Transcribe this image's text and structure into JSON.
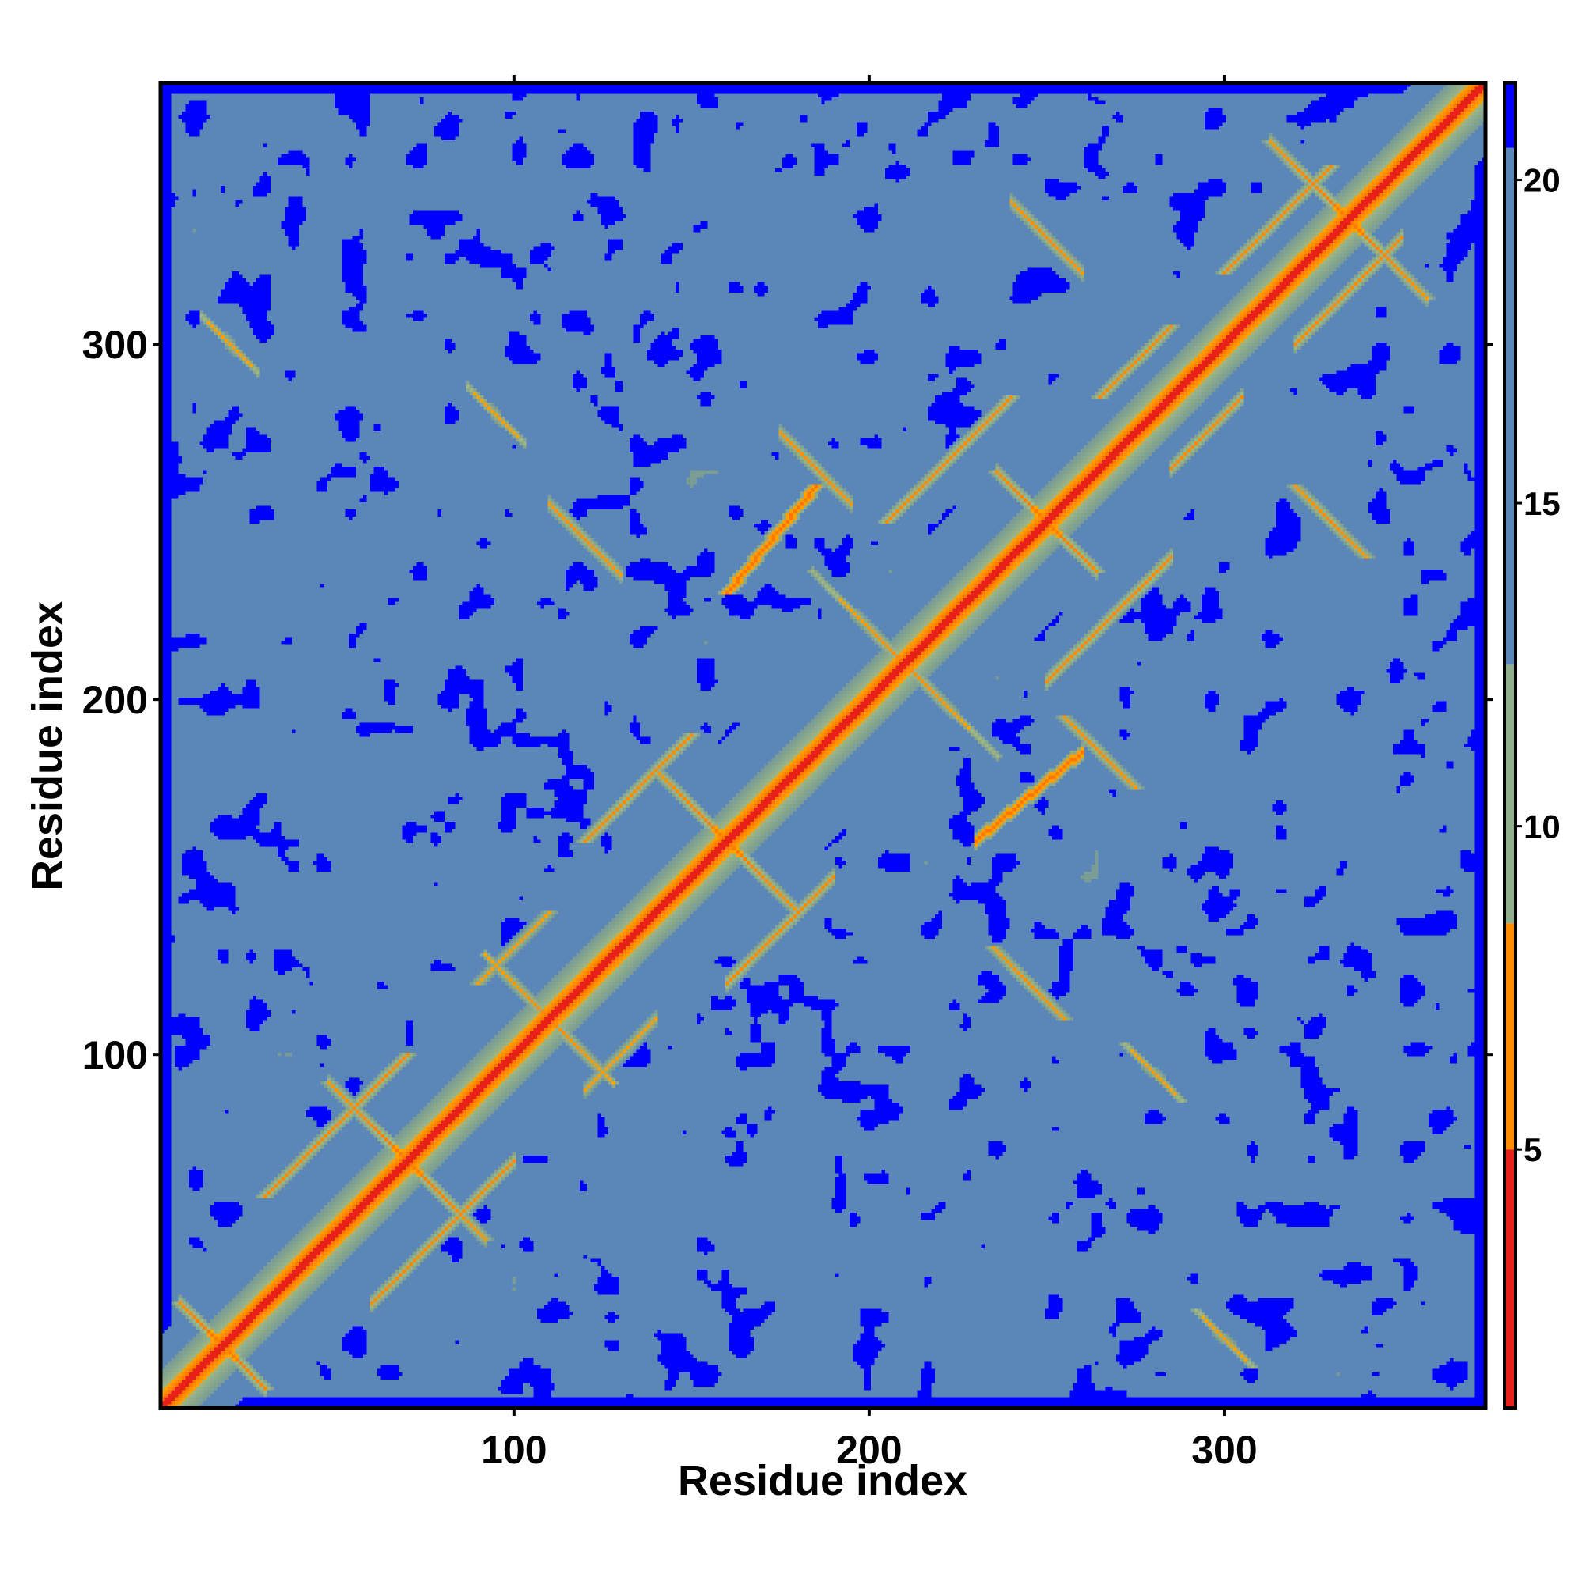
{
  "chart_data": {
    "type": "heatmap",
    "title": "",
    "xlabel": "Residue index",
    "ylabel": "Residue index",
    "xlim": [
      1,
      373
    ],
    "ylim": [
      1,
      373
    ],
    "x_ticks": [
      100,
      200,
      300
    ],
    "y_ticks": [
      100,
      200,
      300
    ],
    "colorbar": {
      "range": [
        1,
        21.5
      ],
      "ticks": [
        5,
        10,
        15,
        20
      ],
      "colors": [
        {
          "from": 1,
          "to": 5,
          "hex": "#e8201a"
        },
        {
          "from": 5,
          "to": 8.5,
          "hex": "#ff8c00"
        },
        {
          "from": 8.5,
          "to": 12.5,
          "hex": "#8fae8c"
        },
        {
          "from": 12.5,
          "to": 20.5,
          "hex": "#5b86b8"
        },
        {
          "from": 20.5,
          "to": 21.5,
          "hex": "#0000ff"
        }
      ]
    },
    "grid": false,
    "matrix": "symmetric residue-residue distance map; diagonal = 1; values rise with sequence separation; off-diagonal contact features listed below",
    "contact_features": [
      {
        "kind": "antidiagonal",
        "center": [
          70,
          70
        ],
        "half_length": 22,
        "min_value": 6
      },
      {
        "kind": "antidiagonal",
        "center": [
          160,
          160
        ],
        "half_length": 20,
        "min_value": 6
      },
      {
        "kind": "antidiagonal",
        "center": [
          250,
          250
        ],
        "half_length": 14,
        "min_value": 6
      },
      {
        "kind": "antidiagonal",
        "center": [
          335,
          335
        ],
        "half_length": 22,
        "min_value": 6
      },
      {
        "kind": "antidiagonal",
        "center": [
          18,
          18
        ],
        "half_length": 12,
        "min_value": 6
      },
      {
        "kind": "antidiagonal",
        "center": [
          110,
          110
        ],
        "half_length": 18,
        "min_value": 7
      },
      {
        "kind": "antidiagonal",
        "center": [
          210,
          210
        ],
        "half_length": 26,
        "min_value": 7
      },
      {
        "kind": "parallel",
        "start": [
          30,
          60
        ],
        "end": [
          70,
          100
        ],
        "min_value": 7
      },
      {
        "kind": "parallel",
        "start": [
          120,
          160
        ],
        "end": [
          150,
          190
        ],
        "min_value": 7
      },
      {
        "kind": "parallel",
        "start": [
          205,
          250
        ],
        "end": [
          240,
          285
        ],
        "min_value": 7
      },
      {
        "kind": "parallel",
        "start": [
          300,
          320
        ],
        "end": [
          330,
          350
        ],
        "min_value": 7
      },
      {
        "kind": "parallel",
        "start": [
          160,
          230
        ],
        "end": [
          185,
          260
        ],
        "min_value": 6
      },
      {
        "kind": "parallel",
        "start": [
          265,
          285
        ],
        "end": [
          285,
          305
        ],
        "min_value": 7
      },
      {
        "kind": "parallel",
        "start": [
          90,
          120
        ],
        "end": [
          110,
          140
        ],
        "min_value": 8
      },
      {
        "kind": "antidiagonal",
        "center": [
          265,
          185
        ],
        "half_length": 10,
        "min_value": 7
      },
      {
        "kind": "antidiagonal",
        "center": [
          280,
          95
        ],
        "half_length": 8,
        "min_value": 8
      },
      {
        "kind": "antidiagonal",
        "center": [
          300,
          20
        ],
        "half_length": 8,
        "min_value": 8
      },
      {
        "kind": "antidiagonal",
        "center": [
          245,
          120
        ],
        "half_length": 10,
        "min_value": 7
      },
      {
        "kind": "antidiagonal",
        "center": [
          330,
          250
        ],
        "half_length": 10,
        "min_value": 7
      }
    ]
  }
}
